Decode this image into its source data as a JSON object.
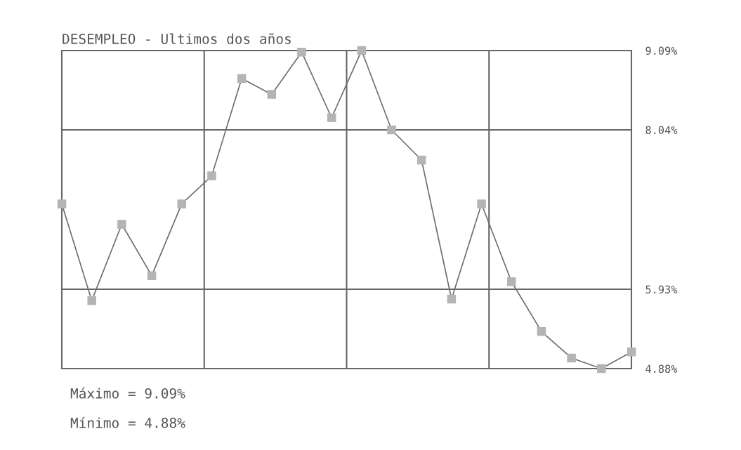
{
  "chart_data": {
    "type": "line",
    "title": "DESEMPLEO - Ultimos dos años",
    "categories": [
      null,
      null,
      null,
      null,
      null,
      null,
      null,
      null,
      null,
      null,
      null,
      null,
      null,
      null,
      null,
      null,
      null,
      null,
      null,
      null
    ],
    "series": [
      {
        "color": "#6e6e6e",
        "values": [
          7.06,
          5.78,
          6.79,
          6.11,
          7.06,
          7.43,
          8.72,
          8.51,
          9.07,
          8.2,
          9.09,
          8.04,
          7.64,
          5.8,
          7.06,
          6.03,
          5.37,
          5.02,
          4.88,
          5.1
        ]
      }
    ],
    "ylim": [
      4.88,
      9.09
    ],
    "yticks": [
      {
        "value": 4.88,
        "label": "4.88%"
      },
      {
        "value": 5.93,
        "label": "5.93%"
      },
      {
        "value": 8.04,
        "label": "8.04%"
      },
      {
        "value": 9.09,
        "label": "9.09%"
      }
    ],
    "grid": true,
    "marker": "square",
    "line_style": "solid",
    "tick_labels": "y",
    "annotations": [
      "Máximo = 9.09%",
      "Mínimo = 4.88%"
    ]
  }
}
